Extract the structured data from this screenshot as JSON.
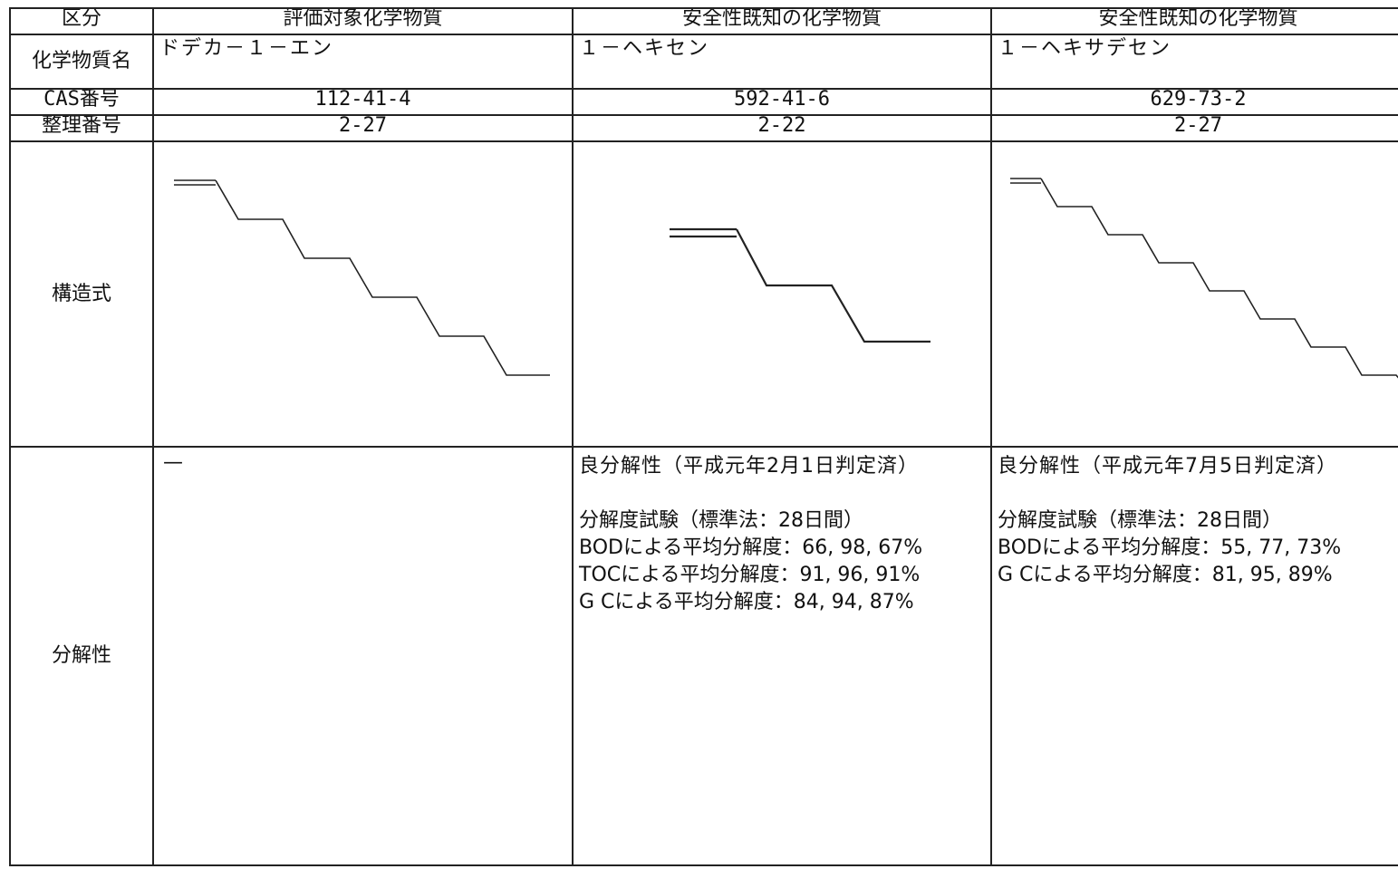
{
  "header": {
    "category_label": "区分",
    "col_target": "評価対象化学物質",
    "col_known_1": "安全性既知の化学物質",
    "col_known_2": "安全性既知の化学物質"
  },
  "rows": {
    "name_label": "化学物質名",
    "cas_label": "CAS番号",
    "ref_label": "整理番号",
    "structure_label": "構造式",
    "degradability_label": "分解性"
  },
  "substances": [
    {
      "name": "ドデカ－１－エン",
      "cas": "112-41-4",
      "ref": "2-27",
      "structure_icon": "dodecene-skeletal-formula",
      "degradability": {
        "verdict": "—",
        "lines": []
      }
    },
    {
      "name": "１－ヘキセン",
      "cas": "592-41-6",
      "ref": "2-22",
      "structure_icon": "hexene-skeletal-formula",
      "degradability": {
        "verdict": "良分解性（平成元年2月1日判定済）",
        "lines": [
          "分解度試験（標準法：28日間）",
          "BODによる平均分解度：66, 98, 67%",
          "TOCによる平均分解度：91, 96, 91%",
          "G Cによる平均分解度：84, 94, 87%"
        ]
      }
    },
    {
      "name": "１－ヘキサデセン",
      "cas": "629-73-2",
      "ref": "2-27",
      "structure_icon": "hexadecene-skeletal-formula",
      "degradability": {
        "verdict": "良分解性（平成元年7月5日判定済）",
        "lines": [
          "分解度試験（標準法：28日間）",
          "BODによる平均分解度：55, 77, 73%",
          "G Cによる平均分解度：81, 95, 89%"
        ]
      }
    }
  ]
}
